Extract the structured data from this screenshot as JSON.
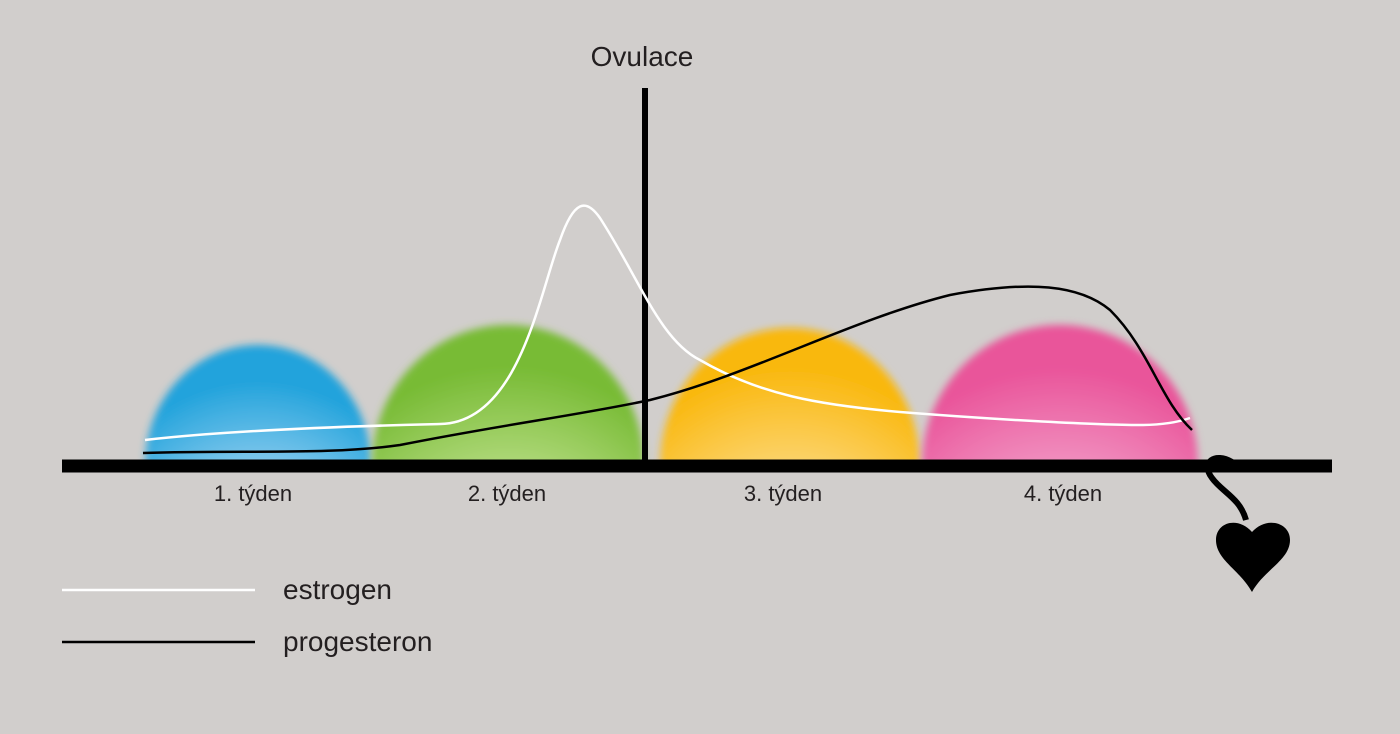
{
  "title": "Ovulace",
  "weeks": [
    "1. týden",
    "2. týden",
    "3. týden",
    "4. týden"
  ],
  "legend": [
    {
      "label": "estrogen"
    },
    {
      "label": "progesteron"
    }
  ]
}
